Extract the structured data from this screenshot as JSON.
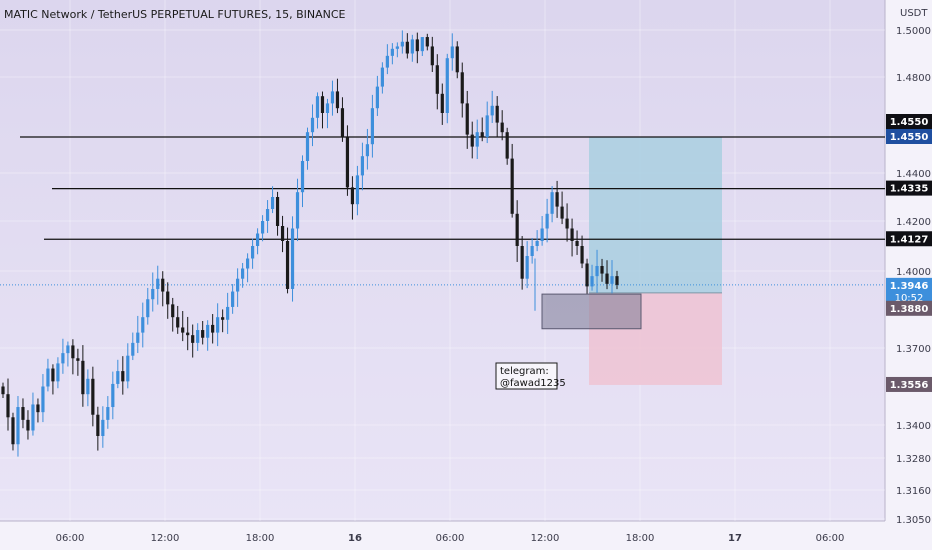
{
  "header": {
    "title": "MATIC Network / TetherUS PERPETUAL FUTURES, 15, BINANCE"
  },
  "axis": {
    "currency": "USDT",
    "price_ticks": [
      "1.5000",
      "1.4800",
      "1.4400",
      "1.4200",
      "1.4000",
      "1.3700",
      "1.3400",
      "1.3280",
      "1.3160",
      "1.3050"
    ],
    "time_ticks": [
      "06:00",
      "12:00",
      "18:00",
      "16",
      "06:00",
      "12:00",
      "18:00",
      "17",
      "06:00"
    ]
  },
  "levels": [
    {
      "label": "1.4550",
      "value": 1.455
    },
    {
      "label": "1.4335",
      "value": 1.4335
    },
    {
      "label": "1.4127",
      "value": 1.4127
    }
  ],
  "price_labels": {
    "top_badge": "1.4550",
    "current": "1.3946",
    "countdown": "10:52",
    "entry": "1.3880",
    "stop": "1.3556"
  },
  "annotation": {
    "line1": "telegram:",
    "line2": "@fawad1235"
  },
  "colors": {
    "background_top": "#dcd6ee",
    "background_bottom": "#e9e4f6",
    "bullish": "#3d8fdc",
    "bearish": "#1a1a1a",
    "target_zone": "#a9cfe0",
    "stop_zone": "#efc3d2",
    "current_badge": "#3d8fdc",
    "level_badge": "#0f0f14",
    "blue_badge": "#1f4fa0",
    "entry_badge": "#6b5a6a"
  },
  "chart_data": {
    "type": "candlestick",
    "symbol": "MATICUSDT.P",
    "interval": "15",
    "x_ticks": [
      "06:00",
      "12:00",
      "18:00",
      "16",
      "06:00",
      "12:00",
      "18:00",
      "17",
      "06:00"
    ],
    "y_ticks": [
      1.5,
      1.48,
      1.44,
      1.42,
      1.4,
      1.37,
      1.34,
      1.328,
      1.316,
      1.305
    ],
    "ylim": [
      1.302,
      1.507
    ],
    "current_price": 1.3946,
    "horizontal_levels": [
      1.455,
      1.4335,
      1.4127
    ],
    "long_position": {
      "entry": 1.388,
      "take_profit": 1.455,
      "stop_loss": 1.3556
    },
    "path": [
      1.352,
      1.343,
      1.333,
      1.347,
      1.342,
      1.338,
      1.348,
      1.345,
      1.355,
      1.362,
      1.357,
      1.364,
      1.368,
      1.371,
      1.366,
      1.365,
      1.352,
      1.358,
      1.344,
      1.336,
      1.342,
      1.347,
      1.356,
      1.361,
      1.357,
      1.367,
      1.372,
      1.376,
      1.382,
      1.389,
      1.393,
      1.397,
      1.392,
      1.387,
      1.382,
      1.378,
      1.376,
      1.375,
      1.372,
      1.377,
      1.374,
      1.379,
      1.376,
      1.382,
      1.381,
      1.386,
      1.392,
      1.397,
      1.401,
      1.405,
      1.41,
      1.415,
      1.42,
      1.425,
      1.43,
      1.418,
      1.412,
      1.393,
      1.417,
      1.432,
      1.445,
      1.457,
      1.463,
      1.472,
      1.465,
      1.469,
      1.474,
      1.467,
      1.455,
      1.434,
      1.427,
      1.439,
      1.447,
      1.452,
      1.467,
      1.476,
      1.484,
      1.489,
      1.492,
      1.493,
      1.495,
      1.49,
      1.496,
      1.491,
      1.497,
      1.493,
      1.485,
      1.473,
      1.465,
      1.488,
      1.493,
      1.482,
      1.469,
      1.456,
      1.451,
      1.457,
      1.455,
      1.464,
      1.468,
      1.461,
      1.457,
      1.446,
      1.423,
      1.41,
      1.397,
      1.406,
      1.41,
      1.412,
      1.417,
      1.423,
      1.432,
      1.426,
      1.421,
      1.417,
      1.412,
      1.41,
      1.403,
      1.394,
      1.398,
      1.402,
      1.399,
      1.395,
      1.398,
      1.3946
    ]
  }
}
